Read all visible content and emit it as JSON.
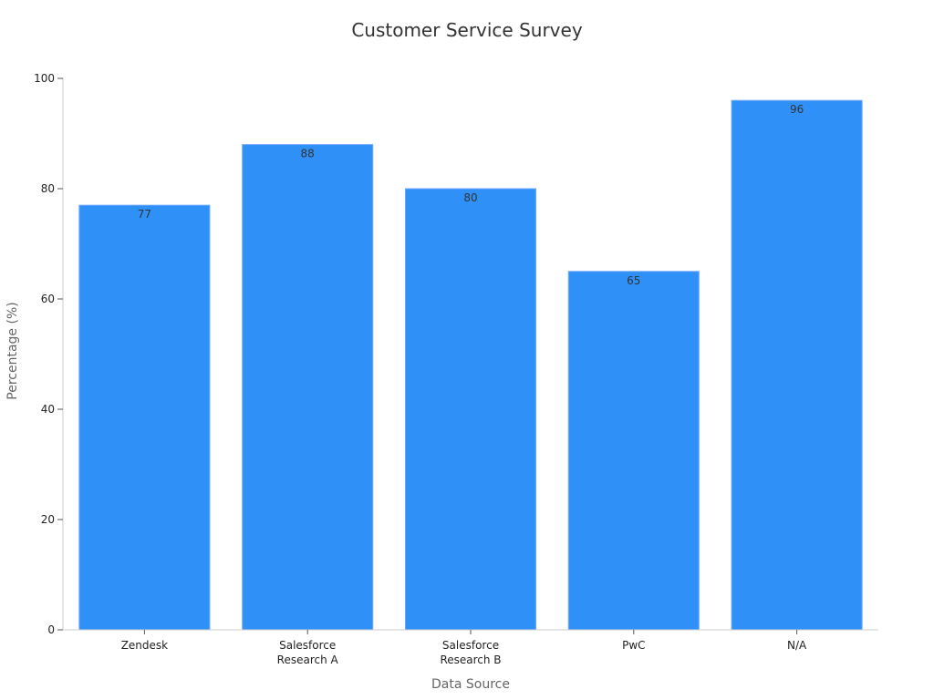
{
  "chart_data": {
    "type": "bar",
    "title": "Customer Service Survey",
    "xlabel": "Data Source",
    "ylabel": "Percentage (%)",
    "categories": [
      [
        "Zendesk"
      ],
      [
        "Salesforce",
        "Research A"
      ],
      [
        "Salesforce",
        "Research B"
      ],
      [
        "PwC"
      ],
      [
        "N/A"
      ]
    ],
    "values": [
      77,
      88,
      80,
      65,
      96
    ],
    "ylim": [
      0,
      100
    ],
    "yticks": [
      0,
      20,
      40,
      60,
      80,
      100
    ],
    "grid": false,
    "bar_color": "#2f91f7"
  }
}
